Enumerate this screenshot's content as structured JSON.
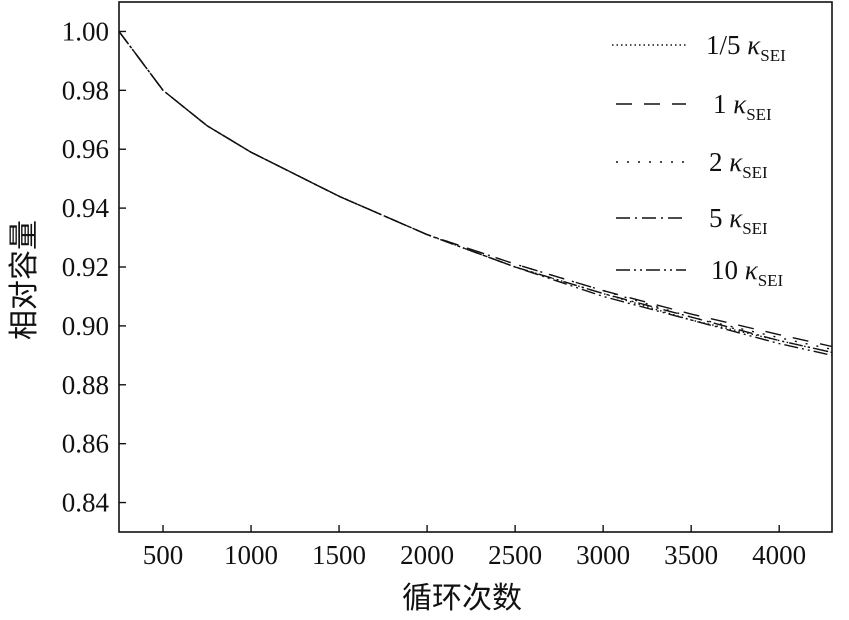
{
  "chart_data": {
    "type": "line",
    "xlabel": "循环次数",
    "ylabel": "相对容量",
    "xlim": [
      250,
      4300
    ],
    "ylim": [
      0.83,
      1.01
    ],
    "xticks": [
      500,
      1000,
      1500,
      2000,
      2500,
      3000,
      3500,
      4000
    ],
    "xtick_labels": [
      "500",
      "1000",
      "1500",
      "2000",
      "2500",
      "3000",
      "3500",
      "4000"
    ],
    "yticks": [
      0.84,
      0.86,
      0.88,
      0.9,
      0.92,
      0.94,
      0.96,
      0.98,
      1.0
    ],
    "ytick_labels": [
      "0.84",
      "0.86",
      "0.88",
      "0.90",
      "0.92",
      "0.94",
      "0.96",
      "0.98",
      "1.00"
    ],
    "grid": false,
    "legend_position": "top-right",
    "x": [
      250,
      500,
      750,
      1000,
      1500,
      2000,
      2500,
      3000,
      3500,
      4000,
      4300
    ],
    "series": [
      {
        "name": "1/5 κSEI",
        "label_main": "1/5 ",
        "label_symbol": "κ",
        "label_sub": "SEI",
        "dash": "1.5,3",
        "values": [
          1.0,
          0.98,
          0.968,
          0.959,
          0.944,
          0.931,
          0.92,
          0.911,
          0.902,
          0.895,
          0.891
        ]
      },
      {
        "name": "1 κSEI",
        "label_main": "1 ",
        "label_symbol": "κ",
        "label_sub": "SEI",
        "dash": "16,12",
        "values": [
          1.0,
          0.98,
          0.968,
          0.959,
          0.944,
          0.931,
          0.921,
          0.912,
          0.904,
          0.897,
          0.893
        ]
      },
      {
        "name": "2 κSEI",
        "label_main": "2 ",
        "label_symbol": "κ",
        "label_sub": "SEI",
        "dash": "2,9",
        "values": [
          1.0,
          0.98,
          0.968,
          0.959,
          0.944,
          0.931,
          0.921,
          0.912,
          0.903,
          0.896,
          0.892
        ]
      },
      {
        "name": "5 κSEI",
        "label_main": "5 ",
        "label_symbol": "κ",
        "label_sub": "SEI",
        "dash": "14,5,2,5",
        "values": [
          1.0,
          0.98,
          0.968,
          0.959,
          0.944,
          0.931,
          0.92,
          0.911,
          0.903,
          0.895,
          0.891
        ]
      },
      {
        "name": "10 κSEI",
        "label_main": "10 ",
        "label_symbol": "κ",
        "label_sub": "SEI",
        "dash": "14,4,2,4,2,4",
        "values": [
          1.0,
          0.98,
          0.968,
          0.959,
          0.944,
          0.931,
          0.92,
          0.91,
          0.902,
          0.894,
          0.89
        ]
      }
    ]
  }
}
